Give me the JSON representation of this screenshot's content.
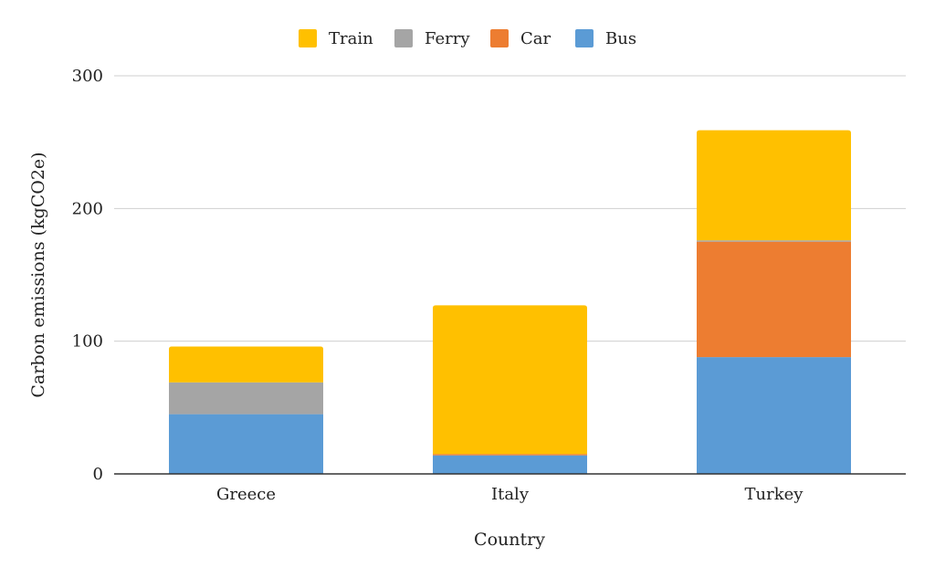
{
  "chart_data": {
    "type": "bar",
    "stacked": true,
    "title": "",
    "xlabel": "Country",
    "ylabel": "Carbon emissions (kgCO2e)",
    "categories": [
      "Greece",
      "Italy",
      "Turkey"
    ],
    "ylim": [
      0,
      300
    ],
    "yticks": [
      0,
      100,
      200,
      300
    ],
    "ytick_labels": [
      "0",
      "100",
      "200",
      "300"
    ],
    "grid": true,
    "legend_position": "top",
    "legend_order": [
      "Train",
      "Ferry",
      "Car",
      "Bus"
    ],
    "series": [
      {
        "name": "Bus",
        "color": "#5b9bd5",
        "values": [
          45,
          14,
          88
        ]
      },
      {
        "name": "Car",
        "color": "#ed7d31",
        "values": [
          0,
          1,
          87
        ]
      },
      {
        "name": "Ferry",
        "color": "#a5a5a5",
        "values": [
          24,
          0,
          1
        ]
      },
      {
        "name": "Train",
        "color": "#ffc000",
        "values": [
          27,
          112,
          83
        ]
      }
    ]
  }
}
